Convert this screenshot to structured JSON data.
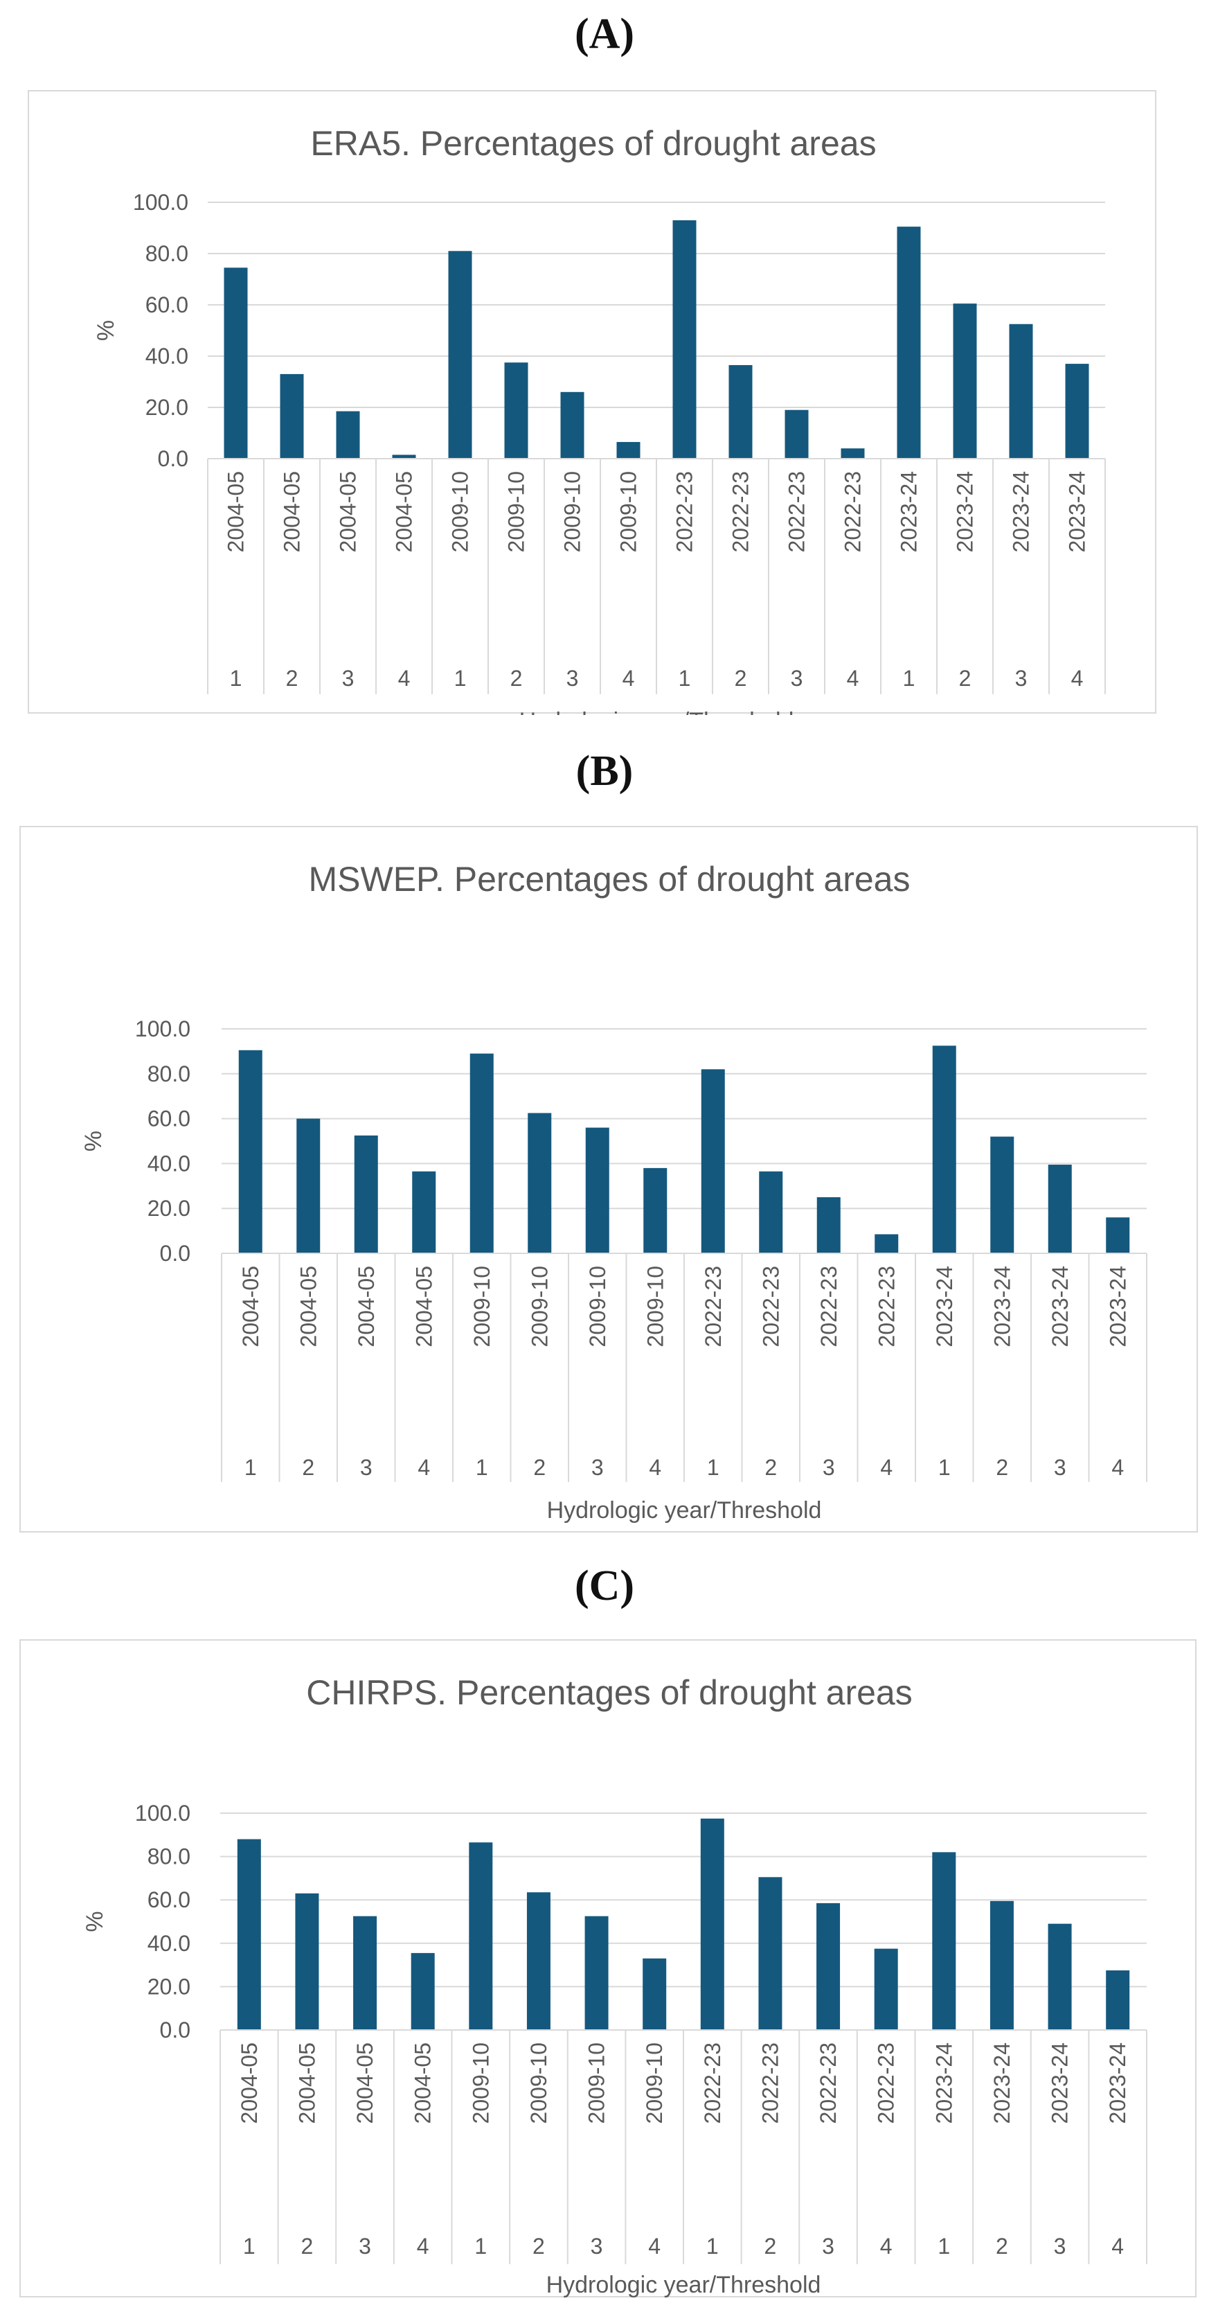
{
  "panels": [
    {
      "label": "(A)",
      "bar_color": "#14587e"
    },
    {
      "label": "(B)",
      "bar_color": "#14587e"
    },
    {
      "label": "(C)",
      "bar_color": "#14587e"
    }
  ],
  "chart_data": [
    {
      "type": "bar",
      "title": "ERA5. Percentages of drought areas",
      "xlabel": "Hydrologic year/Threshold",
      "ylabel": "%",
      "ylim": [
        0,
        100
      ],
      "yticks": [
        "0.0",
        "20.0",
        "40.0",
        "60.0",
        "80.0",
        "100.0"
      ],
      "categories": [
        "2004-05",
        "2004-05",
        "2004-05",
        "2004-05",
        "2009-10",
        "2009-10",
        "2009-10",
        "2009-10",
        "2022-23",
        "2022-23",
        "2022-23",
        "2022-23",
        "2023-24",
        "2023-24",
        "2023-24",
        "2023-24"
      ],
      "thresholds": [
        "1",
        "2",
        "3",
        "4",
        "1",
        "2",
        "3",
        "4",
        "1",
        "2",
        "3",
        "4",
        "1",
        "2",
        "3",
        "4"
      ],
      "values": [
        74.5,
        33,
        18.5,
        1.5,
        81,
        37.5,
        26,
        6.5,
        93,
        36.5,
        19,
        4,
        90.5,
        60.5,
        52.5,
        37
      ]
    },
    {
      "type": "bar",
      "title": "MSWEP. Percentages of drought areas",
      "xlabel": "Hydrologic year/Threshold",
      "ylabel": "%",
      "ylim": [
        0,
        100
      ],
      "yticks": [
        "0.0",
        "20.0",
        "40.0",
        "60.0",
        "80.0",
        "100.0"
      ],
      "categories": [
        "2004-05",
        "2004-05",
        "2004-05",
        "2004-05",
        "2009-10",
        "2009-10",
        "2009-10",
        "2009-10",
        "2022-23",
        "2022-23",
        "2022-23",
        "2022-23",
        "2023-24",
        "2023-24",
        "2023-24",
        "2023-24"
      ],
      "thresholds": [
        "1",
        "2",
        "3",
        "4",
        "1",
        "2",
        "3",
        "4",
        "1",
        "2",
        "3",
        "4",
        "1",
        "2",
        "3",
        "4"
      ],
      "values": [
        90.5,
        60,
        52.5,
        36.5,
        89,
        62.5,
        56,
        38,
        82,
        36.5,
        25,
        8.5,
        92.5,
        52,
        39.5,
        16
      ]
    },
    {
      "type": "bar",
      "title": "CHIRPS. Percentages of drought areas",
      "xlabel": "Hydrologic year/Threshold",
      "ylabel": "%",
      "ylim": [
        0,
        100
      ],
      "yticks": [
        "0.0",
        "20.0",
        "40.0",
        "60.0",
        "80.0",
        "100.0"
      ],
      "categories": [
        "2004-05",
        "2004-05",
        "2004-05",
        "2004-05",
        "2009-10",
        "2009-10",
        "2009-10",
        "2009-10",
        "2022-23",
        "2022-23",
        "2022-23",
        "2022-23",
        "2023-24",
        "2023-24",
        "2023-24",
        "2023-24"
      ],
      "thresholds": [
        "1",
        "2",
        "3",
        "4",
        "1",
        "2",
        "3",
        "4",
        "1",
        "2",
        "3",
        "4",
        "1",
        "2",
        "3",
        "4"
      ],
      "values": [
        88,
        63,
        52.5,
        35.5,
        86.5,
        63.5,
        52.5,
        33,
        97.5,
        70.5,
        58.5,
        37.5,
        82,
        59.5,
        49,
        27.5
      ]
    }
  ]
}
